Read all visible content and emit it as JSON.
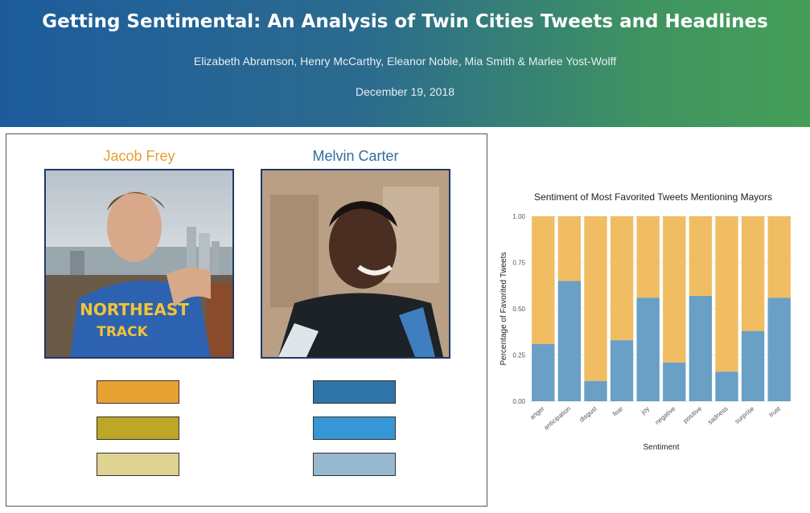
{
  "header": {
    "title": "Getting Sentimental: An Analysis of Twin Cities Tweets and Headlines",
    "authors": "Elizabeth Abramson, Henry McCarthy, Eleanor Noble, Mia Smith & Marlee Yost-Wolff",
    "date": "December 19, 2018",
    "gradient_start": "#1d5c9c",
    "gradient_end": "#459e58"
  },
  "mayors": [
    {
      "name": "Jacob Frey",
      "color": "#e3a032",
      "swatches": [
        "#e8a133",
        "#bea726",
        "#ded391"
      ],
      "photo_text": [
        "NORTHEAST",
        "TRACK"
      ]
    },
    {
      "name": "Melvin Carter",
      "color": "#2f6f9b",
      "swatches": [
        "#2e74a8",
        "#3797d4",
        "#96b9cf"
      ]
    }
  ],
  "chart_data": {
    "type": "bar",
    "stacked": true,
    "title": "Sentiment of Most Favorited Tweets Mentioning Mayors",
    "xlabel": "Sentiment",
    "ylabel": "Percentage of Favorited Tweets",
    "ylim": [
      0,
      1
    ],
    "yticks": [
      "0.00",
      "0.25",
      "0.50",
      "0.75",
      "1.00"
    ],
    "categories": [
      "anger",
      "anticipation",
      "disgust",
      "fear",
      "joy",
      "negative",
      "positive",
      "sadness",
      "surprise",
      "trust"
    ],
    "series": [
      {
        "color": "#6a9fc6",
        "values": [
          0.31,
          0.65,
          0.11,
          0.33,
          0.56,
          0.21,
          0.57,
          0.16,
          0.38,
          0.56
        ]
      },
      {
        "color": "#f0bd63",
        "values": [
          0.69,
          0.35,
          0.89,
          0.67,
          0.44,
          0.79,
          0.43,
          0.84,
          0.62,
          0.44
        ]
      }
    ],
    "grid": true,
    "legend": "none"
  }
}
